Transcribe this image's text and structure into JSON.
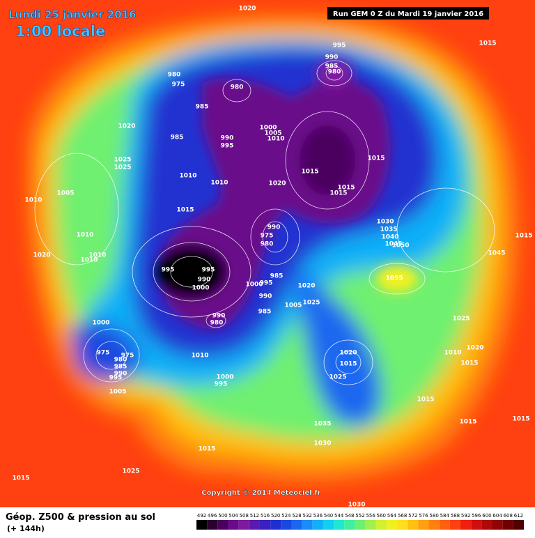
{
  "header": {
    "date": "Lundi 25 janvier 2016",
    "time": "1:00 locale",
    "run": "Run GEM 0 Z du Mardi 19 janvier 2016"
  },
  "footer": {
    "title": "Géop. Z500 & pression au sol",
    "lead": "(+ 144h)",
    "copyright": "Copyright © 2014 Meteociel.fr"
  },
  "scale": {
    "values": [
      492,
      496,
      500,
      504,
      508,
      512,
      516,
      520,
      524,
      528,
      532,
      536,
      540,
      544,
      548,
      552,
      556,
      560,
      564,
      568,
      572,
      576,
      580,
      584,
      588,
      592,
      596,
      600,
      604,
      608,
      612
    ],
    "colors": [
      "#000000",
      "#2a0030",
      "#4b0060",
      "#6a0a8a",
      "#7d1aa0",
      "#5a1ab0",
      "#3a20c0",
      "#2030d0",
      "#1a48e0",
      "#1a68f0",
      "#1a8cf8",
      "#10b0f8",
      "#10d0f0",
      "#20e8d0",
      "#40f0a0",
      "#70f070",
      "#a0f050",
      "#d0f030",
      "#f0f020",
      "#ffe020",
      "#ffc010",
      "#ffa010",
      "#ff8010",
      "#ff6010",
      "#ff4010",
      "#f02010",
      "#d01010",
      "#b00808",
      "#900404",
      "#700000",
      "#500000"
    ]
  },
  "isobar_labels": [
    1020,
    995,
    1015,
    990,
    985,
    980,
    980,
    975,
    980,
    985,
    1020,
    1000,
    1005,
    1010,
    985,
    990,
    995,
    1025,
    1025,
    1015,
    1010,
    1010,
    1015,
    1020,
    1015,
    1015,
    1005,
    1010,
    1015,
    1030,
    1035,
    1040,
    1045,
    1050,
    990,
    975,
    980,
    1010,
    1010,
    1010,
    1020,
    995,
    995,
    990,
    1000,
    1000,
    995,
    985,
    1045,
    1015,
    1055,
    1020,
    990,
    1005,
    1025,
    985,
    990,
    980,
    1025,
    1000,
    975,
    975,
    980,
    985,
    990,
    995,
    1010,
    1020,
    1015,
    1025,
    1000,
    995,
    1005,
    1010,
    1020,
    1015,
    1015,
    1035,
    1030,
    1015,
    1015,
    1015,
    1025,
    1015,
    1030
  ]
}
